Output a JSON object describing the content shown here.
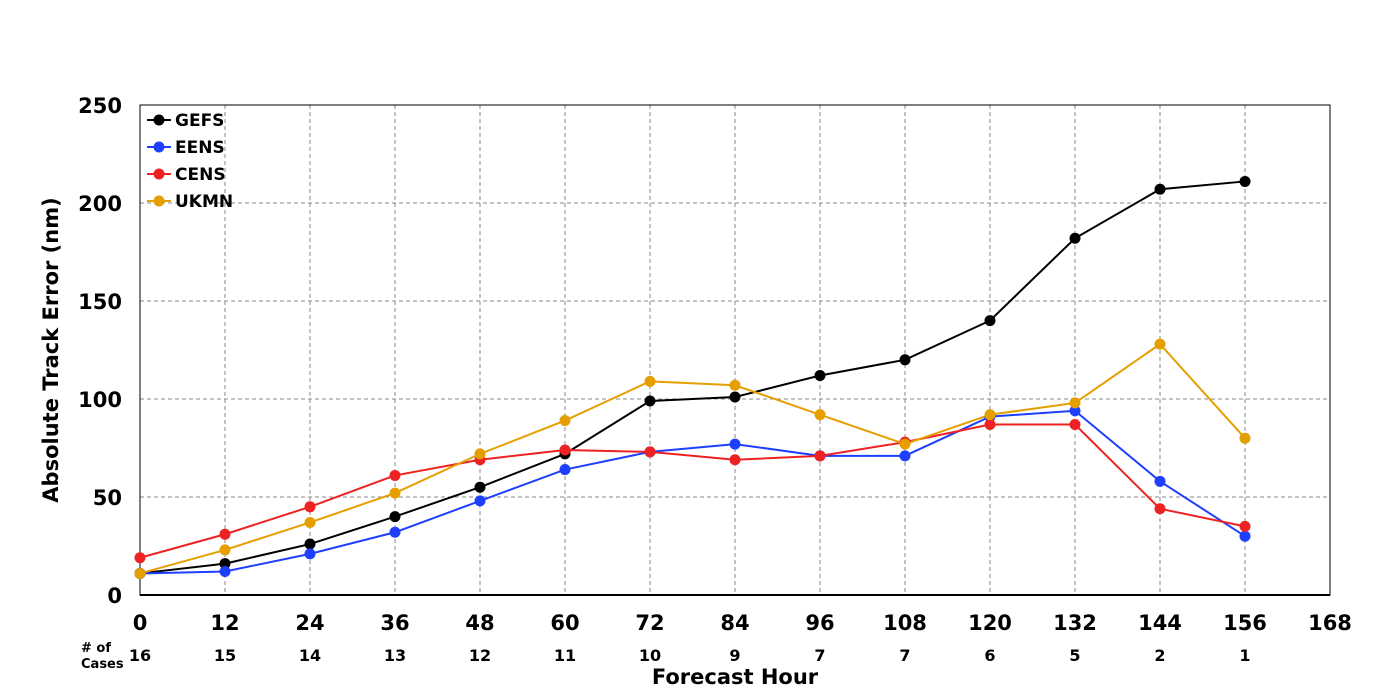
{
  "chart_data": {
    "type": "line",
    "title": "",
    "xlabel": "Forecast Hour",
    "ylabel": "Absolute Track Error (nm)",
    "xlim": [
      0,
      168
    ],
    "ylim": [
      0,
      250
    ],
    "x_ticks": [
      0,
      12,
      24,
      36,
      48,
      60,
      72,
      84,
      96,
      108,
      120,
      132,
      144,
      156,
      168
    ],
    "y_ticks": [
      0,
      50,
      100,
      150,
      200,
      250
    ],
    "grid": true,
    "legend_position": "top-left",
    "cases_label": "# of Cases",
    "cases_label_lines": [
      "# of",
      "Cases"
    ],
    "cases": [
      {
        "x": 0,
        "n": "16"
      },
      {
        "x": 12,
        "n": "15"
      },
      {
        "x": 24,
        "n": "14"
      },
      {
        "x": 36,
        "n": "13"
      },
      {
        "x": 48,
        "n": "12"
      },
      {
        "x": 60,
        "n": "11"
      },
      {
        "x": 72,
        "n": "10"
      },
      {
        "x": 84,
        "n": "9"
      },
      {
        "x": 96,
        "n": "7"
      },
      {
        "x": 108,
        "n": "7"
      },
      {
        "x": 120,
        "n": "6"
      },
      {
        "x": 132,
        "n": "5"
      },
      {
        "x": 144,
        "n": "2"
      },
      {
        "x": 156,
        "n": "1"
      }
    ],
    "x": [
      0,
      12,
      24,
      36,
      48,
      60,
      72,
      84,
      96,
      108,
      120,
      132,
      144,
      156
    ],
    "series": [
      {
        "name": "GEFS",
        "color": "#000000",
        "values": [
          11,
          16,
          26,
          40,
          55,
          72,
          99,
          101,
          112,
          120,
          140,
          182,
          207,
          211
        ]
      },
      {
        "name": "EENS",
        "color": "#1f3fff",
        "values": [
          11,
          12,
          21,
          32,
          48,
          64,
          73,
          77,
          71,
          71,
          91,
          94,
          58,
          30
        ]
      },
      {
        "name": "CENS",
        "color": "#ee2222",
        "values": [
          19,
          31,
          45,
          61,
          69,
          74,
          73,
          69,
          71,
          78,
          87,
          87,
          44,
          35
        ]
      },
      {
        "name": "UKMN",
        "color": "#e69f00",
        "values": [
          11,
          23,
          37,
          52,
          72,
          89,
          109,
          107,
          92,
          77,
          92,
          98,
          128,
          80
        ]
      }
    ]
  }
}
